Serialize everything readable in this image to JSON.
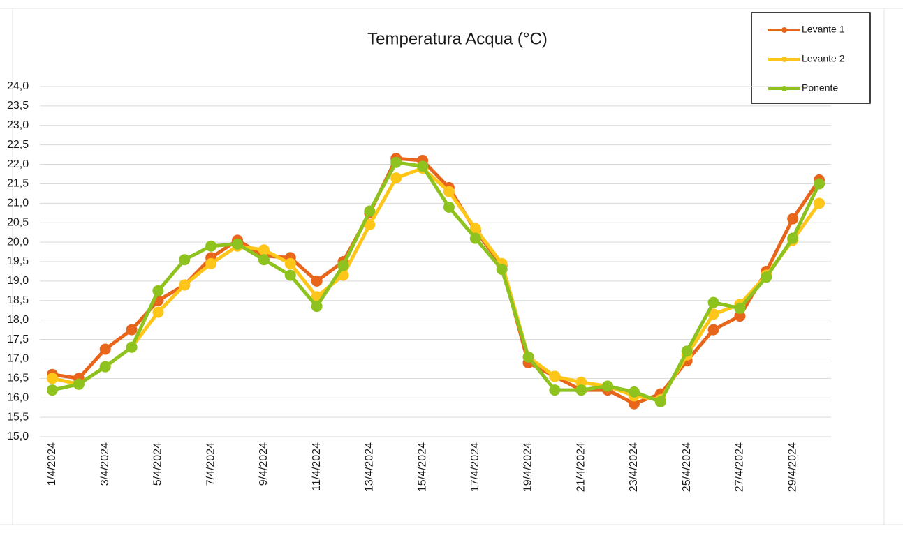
{
  "chart_data": {
    "type": "line",
    "title": "Temperatura Acqua (°C)",
    "categories": [
      "1/4/2024",
      null,
      "3/4/2024",
      null,
      "5/4/2024",
      null,
      "7/4/2024",
      null,
      "9/4/2024",
      null,
      "11/4/2024",
      null,
      "13/4/2024",
      null,
      "15/4/2024",
      null,
      "17/4/2024",
      null,
      "19/4/2024",
      null,
      "21/4/2024",
      null,
      "23/4/2024",
      null,
      "25/4/2024",
      null,
      "27/4/2024",
      null,
      "29/4/2024",
      null
    ],
    "series": [
      {
        "name": "Levante 1",
        "color": "#e8661c",
        "values": [
          16.6,
          16.5,
          17.25,
          17.75,
          18.5,
          18.9,
          19.6,
          20.05,
          19.65,
          19.6,
          19.0,
          19.5,
          20.75,
          22.15,
          22.1,
          21.4,
          20.3,
          19.4,
          16.9,
          16.55,
          16.2,
          16.2,
          15.85,
          16.1,
          16.95,
          17.75,
          18.1,
          19.25,
          20.6,
          21.6
        ]
      },
      {
        "name": "Levante 2",
        "color": "#ffc61a",
        "values": [
          16.5,
          16.35,
          16.8,
          17.3,
          18.2,
          18.9,
          19.45,
          19.9,
          19.8,
          19.45,
          18.6,
          19.15,
          20.45,
          21.65,
          21.9,
          21.3,
          20.35,
          19.45,
          17.05,
          16.55,
          16.4,
          16.3,
          16.05,
          15.95,
          17.1,
          18.15,
          18.4,
          19.15,
          20.05,
          21.0
        ]
      },
      {
        "name": "Ponente",
        "color": "#8dc21f",
        "values": [
          16.2,
          16.35,
          16.8,
          17.3,
          18.75,
          19.55,
          19.9,
          19.95,
          19.55,
          19.15,
          18.35,
          19.4,
          20.8,
          22.05,
          21.95,
          20.9,
          20.1,
          19.3,
          17.05,
          16.2,
          16.2,
          16.3,
          16.15,
          15.9,
          17.2,
          18.45,
          18.3,
          19.1,
          20.1,
          21.5
        ]
      }
    ],
    "ylim": [
      15,
      24
    ],
    "yticks": [
      {
        "value": 15,
        "label": "15,0"
      },
      {
        "value": 15.5,
        "label": "15,5"
      },
      {
        "value": 16,
        "label": "16,0"
      },
      {
        "value": 16.5,
        "label": "16,5"
      },
      {
        "value": 17,
        "label": "17,0"
      },
      {
        "value": 17.5,
        "label": "17,5"
      },
      {
        "value": 18,
        "label": "18,0"
      },
      {
        "value": 18.5,
        "label": "18,5"
      },
      {
        "value": 19,
        "label": "19,0"
      },
      {
        "value": 19.5,
        "label": "19,5"
      },
      {
        "value": 20,
        "label": "20,0"
      },
      {
        "value": 20.5,
        "label": "20,5"
      },
      {
        "value": 21,
        "label": "21,0"
      },
      {
        "value": 21.5,
        "label": "21,5"
      },
      {
        "value": 22,
        "label": "22,0"
      },
      {
        "value": 22.5,
        "label": "22,5"
      },
      {
        "value": 23,
        "label": "23,0"
      },
      {
        "value": 23.5,
        "label": "23,5"
      },
      {
        "value": 24,
        "label": "24,0"
      }
    ],
    "grid": true,
    "legend": "top-right"
  }
}
